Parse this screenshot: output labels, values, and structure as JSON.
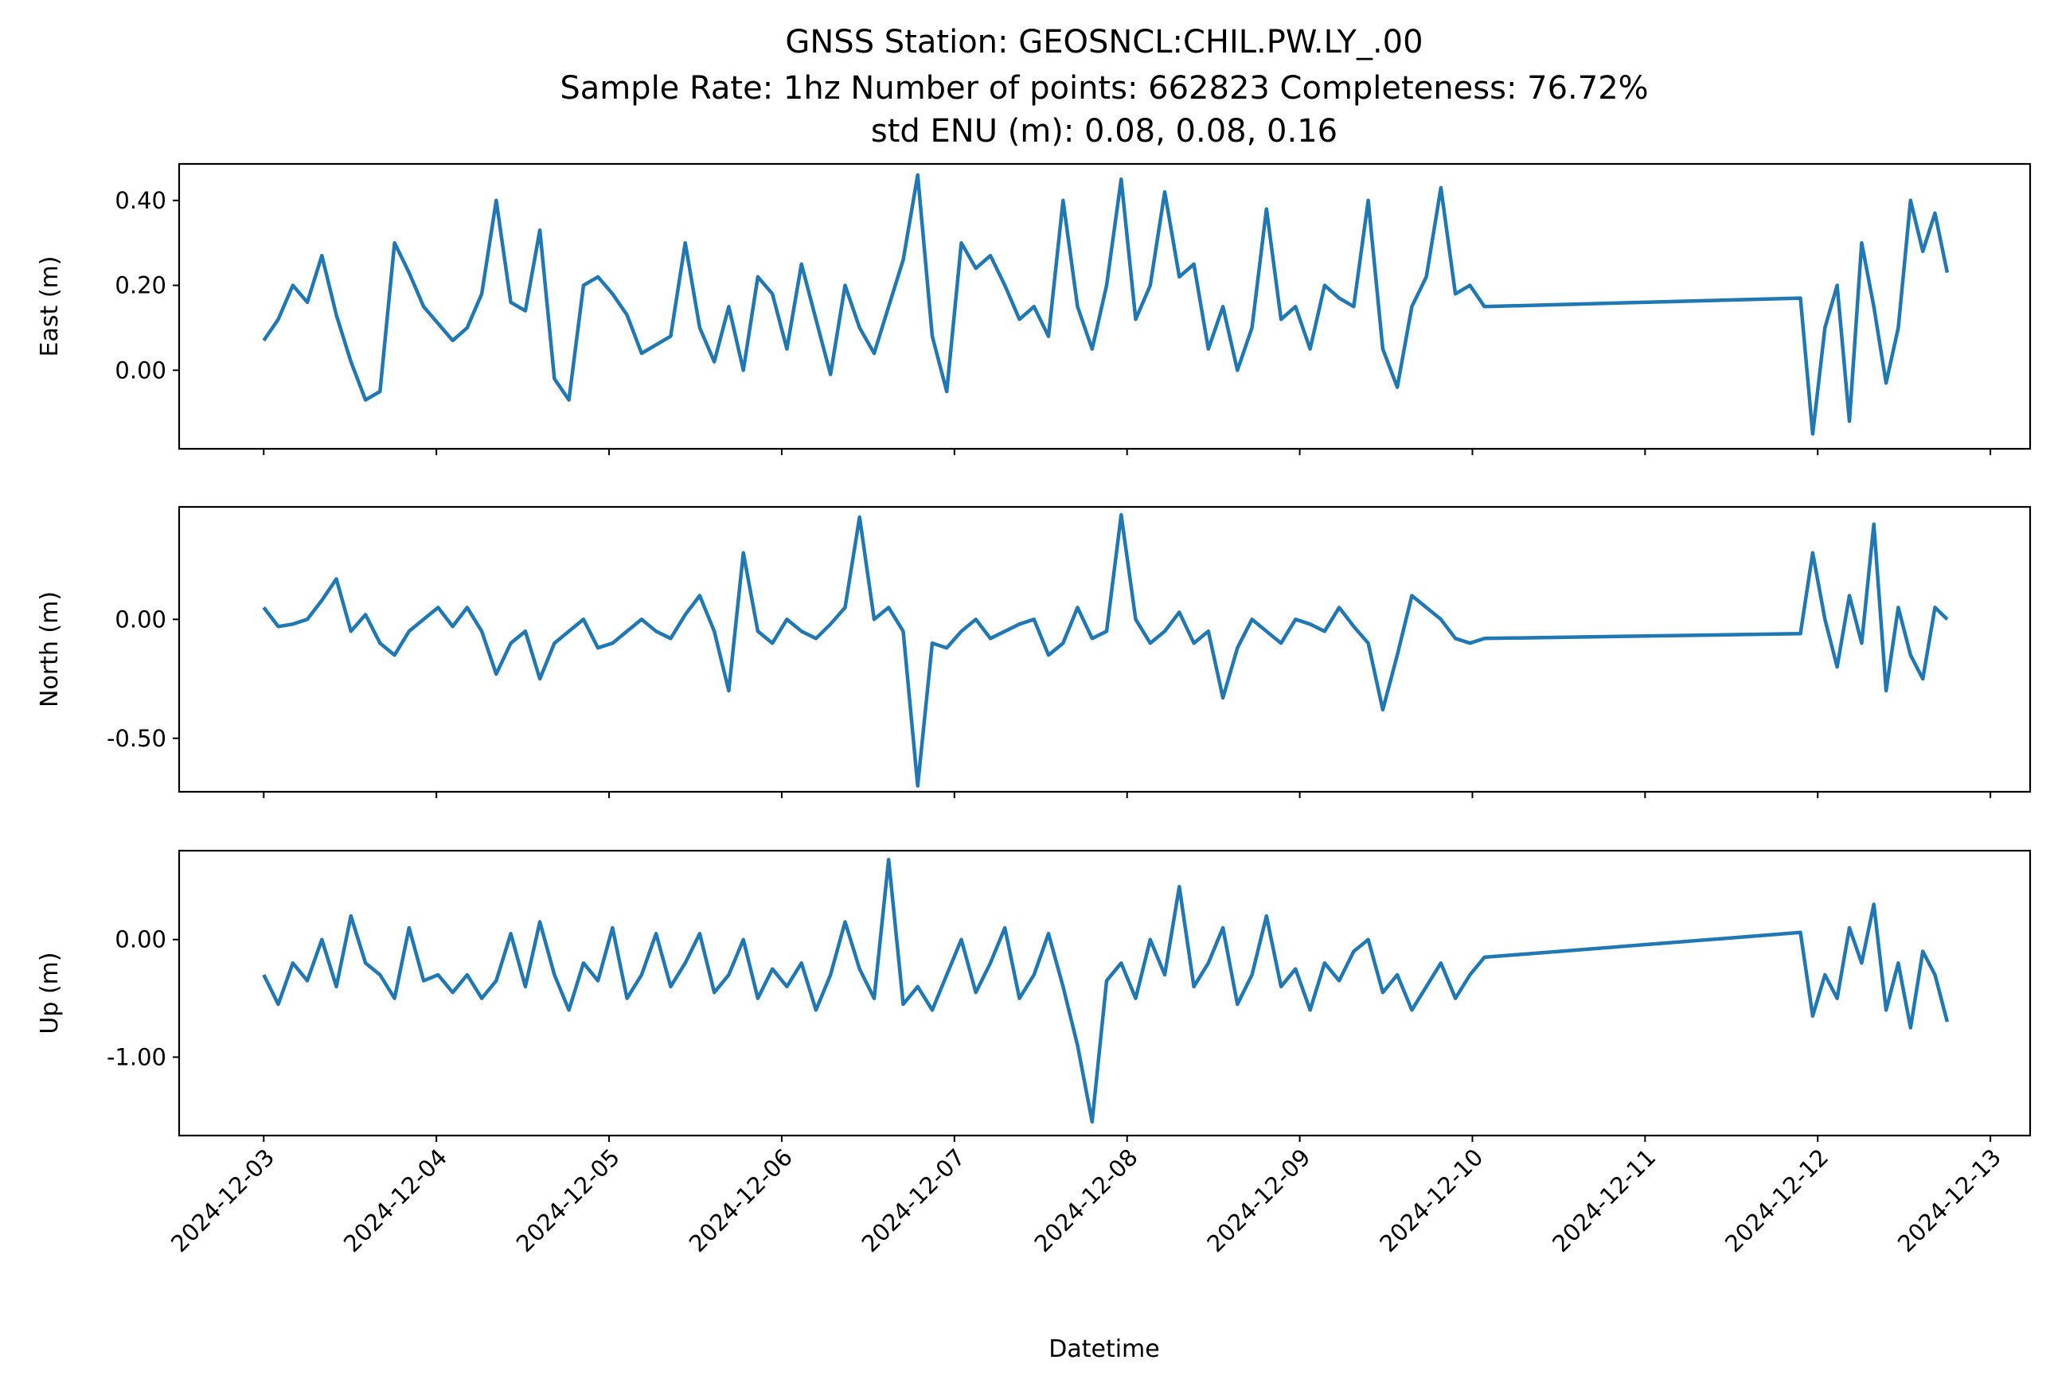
{
  "chart_data": {
    "type": "line",
    "title_lines": [
      "GNSS Station: GEOSNCL:CHIL.PW.LY_.00",
      "Sample Rate: 1hz   Number of points: 662823    Completeness:  76.72%",
      "std ENU (m):  0.08, 0.08, 0.16"
    ],
    "xlabel": "Datetime",
    "x_unit": "days since 2024-12-03",
    "xlim": [
      -0.49,
      10.23
    ],
    "xticks": [
      {
        "day": 0,
        "label": "2024-12-03"
      },
      {
        "day": 1,
        "label": "2024-12-04"
      },
      {
        "day": 2,
        "label": "2024-12-05"
      },
      {
        "day": 3,
        "label": "2024-12-06"
      },
      {
        "day": 4,
        "label": "2024-12-07"
      },
      {
        "day": 5,
        "label": "2024-12-08"
      },
      {
        "day": 6,
        "label": "2024-12-09"
      },
      {
        "day": 7,
        "label": "2024-12-10"
      },
      {
        "day": 8,
        "label": "2024-12-11"
      },
      {
        "day": 9,
        "label": "2024-12-12"
      },
      {
        "day": 10,
        "label": "2024-12-13"
      }
    ],
    "color": "#1f77b4",
    "panels": [
      {
        "name": "east",
        "ylabel": "East (m)",
        "ylim": [
          -0.185,
          0.486
        ],
        "yticks": [
          {
            "v": 0.4,
            "label": "0.40"
          },
          {
            "v": 0.2,
            "label": "0.20"
          },
          {
            "v": 0.0,
            "label": "0.00"
          }
        ],
        "segments": [
          {
            "start_day": 0,
            "end_day": 7.07,
            "values": [
              0.07,
              0.12,
              0.2,
              0.16,
              0.27,
              0.13,
              0.02,
              -0.07,
              -0.05,
              0.3,
              0.23,
              0.15,
              0.11,
              0.07,
              0.1,
              0.18,
              0.4,
              0.16,
              0.14,
              0.33,
              -0.02,
              -0.07,
              0.2,
              0.22,
              0.18,
              0.13,
              0.04,
              0.06,
              0.08,
              0.3,
              0.1,
              0.02,
              0.15,
              0.0,
              0.22,
              0.18,
              0.05,
              0.25,
              0.12,
              -0.01,
              0.2,
              0.1,
              0.04,
              0.15,
              0.26,
              0.46,
              0.08,
              -0.05,
              0.3,
              0.24,
              0.27,
              0.2,
              0.12,
              0.15,
              0.08,
              0.4,
              0.15,
              0.05,
              0.2,
              0.45,
              0.12,
              0.2,
              0.42,
              0.22,
              0.25,
              0.05,
              0.15,
              0.0,
              0.1,
              0.38,
              0.12,
              0.15,
              0.05,
              0.2,
              0.17,
              0.15,
              0.4,
              0.05,
              -0.04,
              0.15,
              0.22,
              0.43,
              0.18,
              0.2,
              0.15
            ]
          },
          {
            "start_day": 8.9,
            "end_day": 9.75,
            "values": [
              0.17,
              -0.15,
              0.1,
              0.2,
              -0.12,
              0.3,
              0.15,
              -0.03,
              0.1,
              0.4,
              0.28,
              0.37,
              0.23
            ]
          }
        ]
      },
      {
        "name": "north",
        "ylabel": "North (m)",
        "ylim": [
          -0.725,
          0.473
        ],
        "yticks": [
          {
            "v": 0.0,
            "label": "0.00"
          },
          {
            "v": -0.5,
            "label": "-0.50"
          }
        ],
        "segments": [
          {
            "start_day": 0,
            "end_day": 7.07,
            "values": [
              0.05,
              -0.03,
              -0.02,
              0.0,
              0.08,
              0.17,
              -0.05,
              0.02,
              -0.1,
              -0.15,
              -0.05,
              0.0,
              0.05,
              -0.03,
              0.05,
              -0.05,
              -0.23,
              -0.1,
              -0.05,
              -0.25,
              -0.1,
              -0.05,
              0.0,
              -0.12,
              -0.1,
              -0.05,
              0.0,
              -0.05,
              -0.08,
              0.02,
              0.1,
              -0.05,
              -0.3,
              0.28,
              -0.05,
              -0.1,
              0.0,
              -0.05,
              -0.08,
              -0.02,
              0.05,
              0.43,
              0.0,
              0.05,
              -0.05,
              -0.7,
              -0.1,
              -0.12,
              -0.05,
              0.0,
              -0.08,
              -0.05,
              -0.02,
              0.0,
              -0.15,
              -0.1,
              0.05,
              -0.08,
              -0.05,
              0.44,
              0.0,
              -0.1,
              -0.05,
              0.03,
              -0.1,
              -0.05,
              -0.33,
              -0.12,
              0.0,
              -0.05,
              -0.1,
              0.0,
              -0.02,
              -0.05,
              0.05,
              -0.03,
              -0.1,
              -0.38,
              -0.15,
              0.1,
              0.05,
              0.0,
              -0.08,
              -0.1,
              -0.08
            ]
          },
          {
            "start_day": 8.9,
            "end_day": 9.75,
            "values": [
              -0.06,
              0.28,
              0.0,
              -0.2,
              0.1,
              -0.1,
              0.4,
              -0.3,
              0.05,
              -0.15,
              -0.25,
              0.05,
              0.0
            ]
          }
        ]
      },
      {
        "name": "up",
        "ylabel": "Up (m)",
        "ylim": [
          -1.667,
          0.756
        ],
        "yticks": [
          {
            "v": 0.0,
            "label": "0.00"
          },
          {
            "v": -1.0,
            "label": "-1.00"
          }
        ],
        "segments": [
          {
            "start_day": 0,
            "end_day": 7.07,
            "values": [
              -0.3,
              -0.55,
              -0.2,
              -0.35,
              0.0,
              -0.4,
              0.2,
              -0.2,
              -0.3,
              -0.5,
              0.1,
              -0.35,
              -0.3,
              -0.45,
              -0.3,
              -0.5,
              -0.35,
              0.05,
              -0.4,
              0.15,
              -0.3,
              -0.6,
              -0.2,
              -0.35,
              0.1,
              -0.5,
              -0.3,
              0.05,
              -0.4,
              -0.2,
              0.05,
              -0.45,
              -0.3,
              0.0,
              -0.5,
              -0.25,
              -0.4,
              -0.2,
              -0.6,
              -0.3,
              0.15,
              -0.25,
              -0.5,
              0.68,
              -0.55,
              -0.4,
              -0.6,
              -0.3,
              0.0,
              -0.45,
              -0.2,
              0.1,
              -0.5,
              -0.3,
              0.05,
              -0.4,
              -0.9,
              -1.55,
              -0.35,
              -0.2,
              -0.5,
              0.0,
              -0.3,
              0.45,
              -0.4,
              -0.2,
              0.1,
              -0.55,
              -0.3,
              0.2,
              -0.4,
              -0.25,
              -0.6,
              -0.2,
              -0.35,
              -0.1,
              0.0,
              -0.45,
              -0.3,
              -0.6,
              -0.4,
              -0.2,
              -0.5,
              -0.3,
              -0.15
            ]
          },
          {
            "start_day": 8.9,
            "end_day": 9.75,
            "values": [
              0.06,
              -0.65,
              -0.3,
              -0.5,
              0.1,
              -0.2,
              0.3,
              -0.6,
              -0.2,
              -0.75,
              -0.1,
              -0.3,
              -0.7
            ]
          }
        ]
      }
    ]
  }
}
